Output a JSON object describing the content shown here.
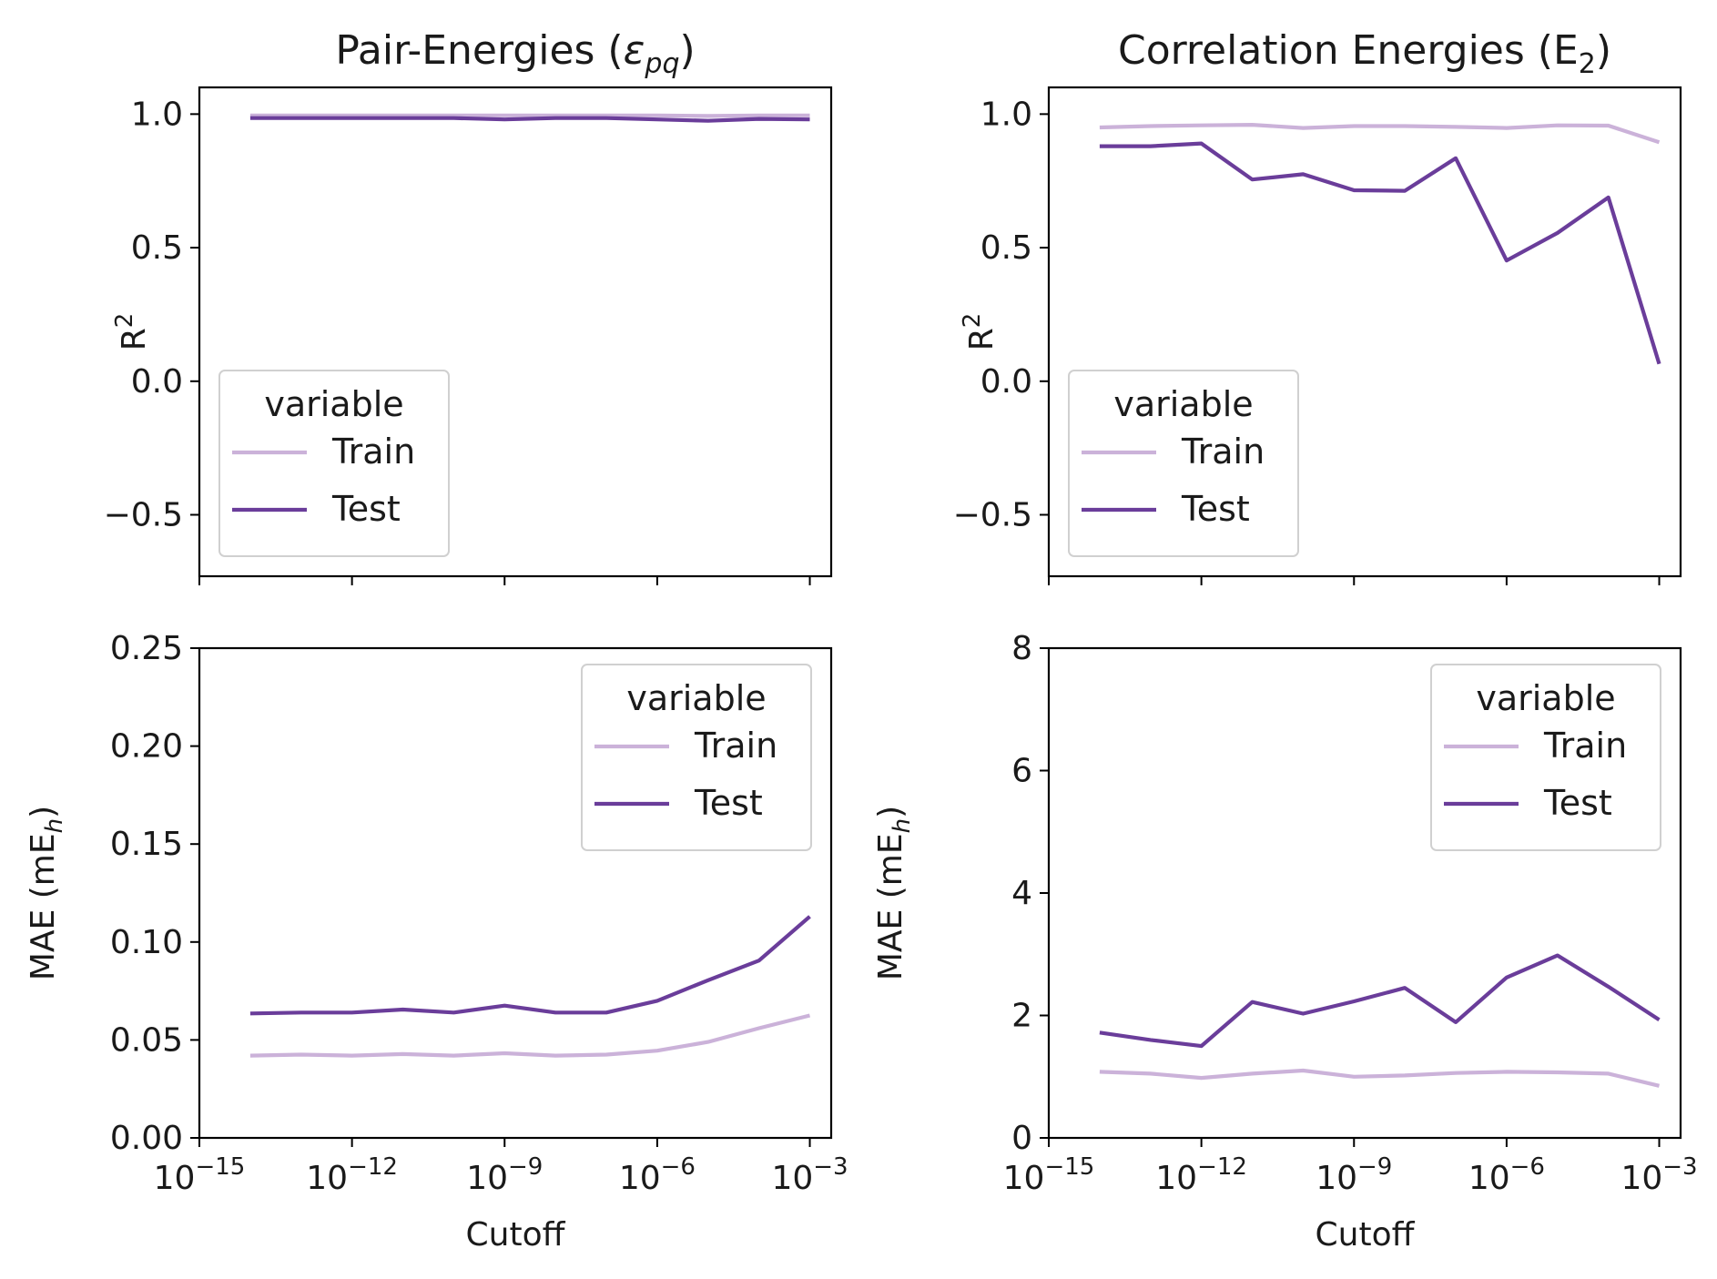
{
  "colors": {
    "train": "#cbb2d9",
    "test": "#6a3d9a"
  },
  "chart_data": [
    {
      "id": "pair_r2",
      "type": "line",
      "title_prefix": "Pair-Energies (",
      "title_symbol": "ε",
      "title_sub": "pq",
      "title_suffix": ")",
      "ylabel_base": "R",
      "ylabel_sup": "2",
      "xscale": "log",
      "xlim_exp": [
        -15,
        -2.58
      ],
      "ylim": [
        -0.73,
        1.1
      ],
      "yticks": [
        -0.5,
        0.0,
        0.5,
        1.0
      ],
      "ytick_labels": [
        "−0.5",
        "0.0",
        "0.5",
        "1.0"
      ],
      "xticks_exp": [
        -15,
        -12,
        -9,
        -6,
        -3
      ],
      "show_xticklabels": false,
      "xlabel": "",
      "legend": {
        "title": "variable",
        "entries": [
          "Train",
          "Test"
        ],
        "placement": "lower-left"
      },
      "x_exp": [
        -14,
        -13,
        -12,
        -11,
        -10,
        -9,
        -8,
        -7,
        -6,
        -5,
        -4,
        -3
      ],
      "series": [
        {
          "name": "Train",
          "key": "train",
          "values": [
            0.995,
            0.995,
            0.995,
            0.995,
            0.995,
            0.995,
            0.995,
            0.995,
            0.995,
            0.993,
            0.995,
            0.995
          ]
        },
        {
          "name": "Test",
          "key": "test",
          "values": [
            0.985,
            0.985,
            0.985,
            0.985,
            0.985,
            0.98,
            0.985,
            0.985,
            0.98,
            0.975,
            0.982,
            0.98
          ]
        }
      ]
    },
    {
      "id": "corr_r2",
      "type": "line",
      "title_prefix": "Correlation Energies (E",
      "title_symbol": "",
      "title_sub": "2",
      "title_suffix": ")",
      "ylabel_base": "R",
      "ylabel_sup": "2",
      "xscale": "log",
      "xlim_exp": [
        -15,
        -2.58
      ],
      "ylim": [
        -0.73,
        1.1
      ],
      "yticks": [
        -0.5,
        0.0,
        0.5,
        1.0
      ],
      "ytick_labels": [
        "−0.5",
        "0.0",
        "0.5",
        "1.0"
      ],
      "xticks_exp": [
        -15,
        -12,
        -9,
        -6,
        -3
      ],
      "show_xticklabels": false,
      "xlabel": "",
      "legend": {
        "title": "variable",
        "entries": [
          "Train",
          "Test"
        ],
        "placement": "lower-left"
      },
      "x_exp": [
        -14,
        -13,
        -12,
        -11,
        -10,
        -9,
        -8,
        -7,
        -6,
        -5,
        -4,
        -3
      ],
      "series": [
        {
          "name": "Train",
          "key": "train",
          "values": [
            0.95,
            0.955,
            0.958,
            0.96,
            0.948,
            0.955,
            0.955,
            0.952,
            0.948,
            0.958,
            0.957,
            0.895
          ]
        },
        {
          "name": "Test",
          "key": "test",
          "values": [
            0.88,
            0.88,
            0.89,
            0.755,
            0.775,
            0.715,
            0.713,
            0.835,
            0.452,
            0.555,
            0.688,
            0.065
          ]
        }
      ]
    },
    {
      "id": "pair_mae",
      "type": "line",
      "ylabel_base": "MAE (mE",
      "ylabel_sub": "h",
      "ylabel_suffix": ")",
      "xscale": "log",
      "xlim_exp": [
        -15,
        -2.58
      ],
      "ylim": [
        0,
        0.25
      ],
      "yticks": [
        0.0,
        0.05,
        0.1,
        0.15,
        0.2,
        0.25
      ],
      "ytick_labels": [
        "0.00",
        "0.05",
        "0.10",
        "0.15",
        "0.20",
        "0.25"
      ],
      "xticks_exp": [
        -15,
        -12,
        -9,
        -6,
        -3
      ],
      "xtick_labels": [
        {
          "base": "10",
          "exp": "−15"
        },
        {
          "base": "10",
          "exp": "−12"
        },
        {
          "base": "10",
          "exp": "−9"
        },
        {
          "base": "10",
          "exp": "−6"
        },
        {
          "base": "10",
          "exp": "−3"
        }
      ],
      "show_xticklabels": true,
      "xlabel": "Cutoff",
      "legend": {
        "title": "variable",
        "entries": [
          "Train",
          "Test"
        ],
        "placement": "upper-right"
      },
      "x_exp": [
        -14,
        -13,
        -12,
        -11,
        -10,
        -9,
        -8,
        -7,
        -6,
        -5,
        -4,
        -3
      ],
      "series": [
        {
          "name": "Train",
          "key": "train",
          "values": [
            0.042,
            0.0425,
            0.042,
            0.0428,
            0.042,
            0.0432,
            0.042,
            0.0425,
            0.0445,
            0.049,
            0.056,
            0.0625
          ]
        },
        {
          "name": "Test",
          "key": "test",
          "values": [
            0.0635,
            0.064,
            0.064,
            0.0655,
            0.064,
            0.0675,
            0.064,
            0.064,
            0.07,
            0.0805,
            0.0905,
            0.113
          ]
        }
      ]
    },
    {
      "id": "corr_mae",
      "type": "line",
      "ylabel_base": "MAE (mE",
      "ylabel_sub": "h",
      "ylabel_suffix": ")",
      "xscale": "log",
      "xlim_exp": [
        -15,
        -2.58
      ],
      "ylim": [
        0,
        8
      ],
      "yticks": [
        0,
        2,
        4,
        6,
        8
      ],
      "ytick_labels": [
        "0",
        "2",
        "4",
        "6",
        "8"
      ],
      "xticks_exp": [
        -15,
        -12,
        -9,
        -6,
        -3
      ],
      "xtick_labels": [
        {
          "base": "10",
          "exp": "−15"
        },
        {
          "base": "10",
          "exp": "−12"
        },
        {
          "base": "10",
          "exp": "−9"
        },
        {
          "base": "10",
          "exp": "−6"
        },
        {
          "base": "10",
          "exp": "−3"
        }
      ],
      "show_xticklabels": true,
      "xlabel": "Cutoff",
      "legend": {
        "title": "variable",
        "entries": [
          "Train",
          "Test"
        ],
        "placement": "upper-right"
      },
      "x_exp": [
        -14,
        -13,
        -12,
        -11,
        -10,
        -9,
        -8,
        -7,
        -6,
        -5,
        -4,
        -3
      ],
      "series": [
        {
          "name": "Train",
          "key": "train",
          "values": [
            1.08,
            1.05,
            0.98,
            1.05,
            1.1,
            1.0,
            1.02,
            1.06,
            1.08,
            1.07,
            1.05,
            0.85
          ]
        },
        {
          "name": "Test",
          "key": "test",
          "values": [
            1.72,
            1.6,
            1.5,
            2.22,
            2.03,
            2.23,
            2.45,
            1.89,
            2.62,
            2.98,
            2.47,
            1.93
          ]
        }
      ]
    }
  ]
}
